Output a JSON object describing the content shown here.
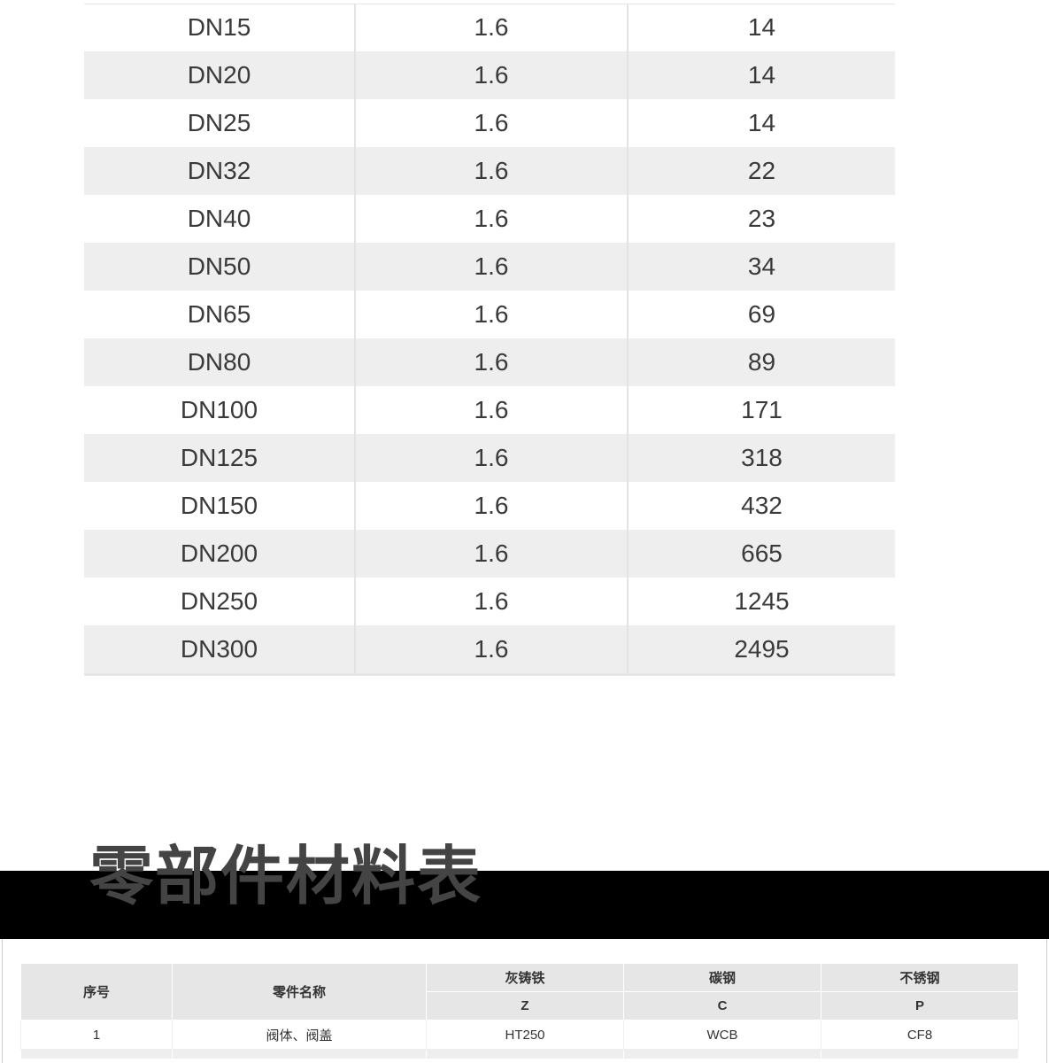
{
  "spec_table": {
    "rows": [
      [
        "DN15",
        "1.6",
        "14"
      ],
      [
        "DN20",
        "1.6",
        "14"
      ],
      [
        "DN25",
        "1.6",
        "14"
      ],
      [
        "DN32",
        "1.6",
        "22"
      ],
      [
        "DN40",
        "1.6",
        "23"
      ],
      [
        "DN50",
        "1.6",
        "34"
      ],
      [
        "DN65",
        "1.6",
        "69"
      ],
      [
        "DN80",
        "1.6",
        "89"
      ],
      [
        "DN100",
        "1.6",
        "171"
      ],
      [
        "DN125",
        "1.6",
        "318"
      ],
      [
        "DN150",
        "1.6",
        "432"
      ],
      [
        "DN200",
        "1.6",
        "665"
      ],
      [
        "DN250",
        "1.6",
        "1245"
      ],
      [
        "DN300",
        "1.6",
        "2495"
      ]
    ]
  },
  "section_title": "零部件材料表",
  "material_table": {
    "headers": {
      "no": "序号",
      "part": "零件名称",
      "grey_iron": "灰铸铁",
      "carbon_steel": "碳钢",
      "stainless": "不锈钢",
      "grey_iron_code": "Z",
      "carbon_steel_code": "C",
      "stainless_code": "P"
    },
    "rows": [
      [
        "1",
        "阀体、阀盖",
        "HT250",
        "WCB",
        "CF8"
      ]
    ]
  }
}
